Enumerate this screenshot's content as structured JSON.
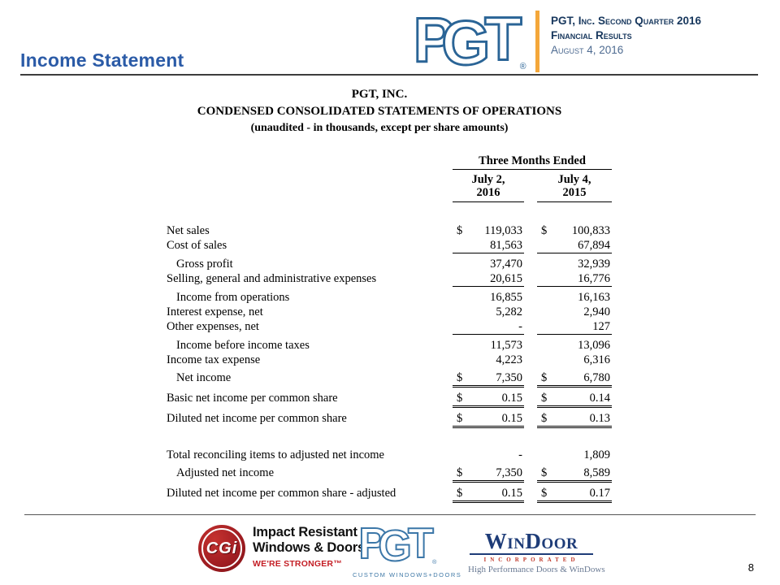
{
  "slide": {
    "title": "Income Statement",
    "page_number": "8"
  },
  "header": {
    "logo": "PGT",
    "registered_mark": "®",
    "line1": "PGT, Inc. Second Quarter 2016",
    "line2": "Financial Results",
    "line3": "August 4, 2016",
    "accent_color": "#F4A73A",
    "text_color": "#17375D",
    "logo_color": "#2A6496"
  },
  "statement": {
    "company": "PGT, INC.",
    "heading": "CONDENSED CONSOLIDATED STATEMENTS OF OPERATIONS",
    "subheading": "(unaudited - in thousands, except per share amounts)",
    "period_header": "Three Months Ended",
    "columns": [
      {
        "line1": "July 2,",
        "line2": "2016"
      },
      {
        "line1": "July 4,",
        "line2": "2015"
      }
    ],
    "currency_symbol": "$",
    "rows": [
      {
        "label": "Net sales",
        "indent": false,
        "dollar": true,
        "v1": "119,033",
        "v2": "100,833",
        "rule": "none",
        "gap": false
      },
      {
        "label": "Cost of sales",
        "indent": false,
        "dollar": false,
        "v1": "81,563",
        "v2": "67,894",
        "rule": "single",
        "gap": false
      },
      {
        "label": "Gross profit",
        "indent": true,
        "dollar": false,
        "v1": "37,470",
        "v2": "32,939",
        "rule": "none",
        "gap": true
      },
      {
        "label": "Selling, general and administrative expenses",
        "indent": false,
        "dollar": false,
        "v1": "20,615",
        "v2": "16,776",
        "rule": "single",
        "gap": false
      },
      {
        "label": "Income from operations",
        "indent": true,
        "dollar": false,
        "v1": "16,855",
        "v2": "16,163",
        "rule": "none",
        "gap": true
      },
      {
        "label": "Interest expense, net",
        "indent": false,
        "dollar": false,
        "v1": "5,282",
        "v2": "2,940",
        "rule": "none",
        "gap": false
      },
      {
        "label": "Other expenses, net",
        "indent": false,
        "dollar": false,
        "v1": "-",
        "v2": "127",
        "rule": "single",
        "gap": false
      },
      {
        "label": "Income before income taxes",
        "indent": true,
        "dollar": false,
        "v1": "11,573",
        "v2": "13,096",
        "rule": "none",
        "gap": true
      },
      {
        "label": "Income tax expense",
        "indent": false,
        "dollar": false,
        "v1": "4,223",
        "v2": "6,316",
        "rule": "none",
        "gap": false
      },
      {
        "label": "Net income",
        "indent": true,
        "dollar": true,
        "v1": "7,350",
        "v2": "6,780",
        "rule": "double",
        "gap": true
      },
      {
        "label": "Basic net income per common share",
        "indent": false,
        "dollar": true,
        "v1": "0.15",
        "v2": "0.14",
        "rule": "double",
        "gap": true
      },
      {
        "label": "Diluted net income per common share",
        "indent": false,
        "dollar": true,
        "v1": "0.15",
        "v2": "0.13",
        "rule": "double",
        "gap": true
      }
    ],
    "adjusted_rows": [
      {
        "label": "Total reconciling items to adjusted net income",
        "indent": false,
        "dollar": false,
        "v1": "-",
        "v2": "1,809",
        "rule": "none",
        "gap": false
      },
      {
        "label": "Adjusted net income",
        "indent": true,
        "dollar": true,
        "v1": "7,350",
        "v2": "8,589",
        "rule": "double",
        "gap": true
      },
      {
        "label": "Diluted net income per common share - adjusted",
        "indent": false,
        "dollar": true,
        "v1": "0.15",
        "v2": "0.17",
        "rule": "double",
        "gap": true
      }
    ]
  },
  "footer": {
    "cgi": {
      "badge": "CGi",
      "line1": "Impact Resistant",
      "line2": "Windows & Doors",
      "tagline": "WE'RE STRONGER™"
    },
    "pgt": {
      "logo": "PGT",
      "caption": "CUSTOM WINDOWS+DOORS"
    },
    "windoor": {
      "name": "WinDoor",
      "incorporated": "INCORPORATED",
      "tagline": "High Performance Doors & WinDows"
    }
  }
}
